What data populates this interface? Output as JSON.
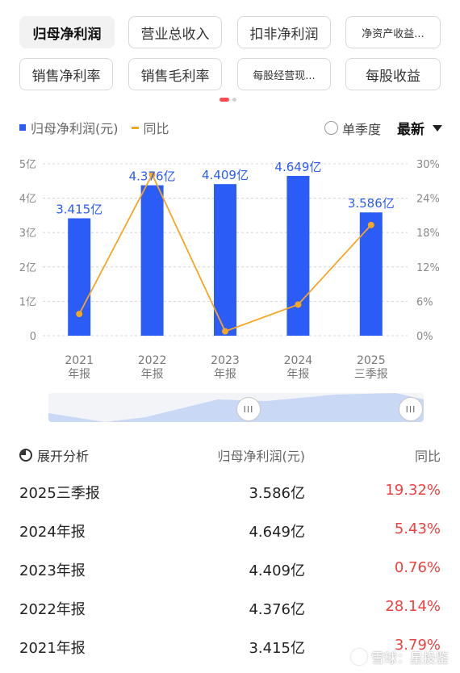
{
  "tabs": [
    {
      "label": "归母净利润",
      "active": true
    },
    {
      "label": "营业总收入"
    },
    {
      "label": "扣非净利润"
    },
    {
      "label": "净资产收益..."
    },
    {
      "label": "销售净利率"
    },
    {
      "label": "销售毛利率"
    },
    {
      "label": "每股经营现..."
    },
    {
      "label": "每股收益"
    }
  ],
  "legend": {
    "bar": "归母净利润(元)",
    "line": "同比"
  },
  "controls": {
    "single_quarter": "单季度",
    "latest": "最新"
  },
  "colors": {
    "bar": "#2b5cf6",
    "line": "#f5a623",
    "negative": "#f04040"
  },
  "chart_data": {
    "type": "bar",
    "categories": [
      [
        "2021",
        "年报"
      ],
      [
        "2022",
        "年报"
      ],
      [
        "2023",
        "年报"
      ],
      [
        "2024",
        "年报"
      ],
      [
        "2025",
        "三季报"
      ]
    ],
    "series": [
      {
        "name": "归母净利润(元)",
        "type": "bar",
        "axis": "left",
        "values": [
          3.415,
          4.376,
          4.409,
          4.649,
          3.586
        ],
        "labels": [
          "3.415亿",
          "4.376亿",
          "4.409亿",
          "4.649亿",
          "3.586亿"
        ]
      },
      {
        "name": "同比",
        "type": "line",
        "axis": "right",
        "values": [
          3.79,
          28.14,
          0.76,
          5.43,
          19.32
        ]
      }
    ],
    "left_ticks": [
      "0",
      "1亿",
      "2亿",
      "3亿",
      "4亿",
      "5亿"
    ],
    "right_ticks": [
      "0%",
      "6%",
      "12%",
      "18%",
      "24%",
      "30%"
    ],
    "ylim_left": [
      0,
      5
    ],
    "ylim_right": [
      0,
      30
    ],
    "grid": true
  },
  "slider": {
    "handle_text": "III"
  },
  "table": {
    "expand_label": "展开分析",
    "col_value": "归母净利润(元)",
    "col_yoy": "同比",
    "rows": [
      {
        "period": "2025三季报",
        "value": "3.586亿",
        "yoy": "19.32%"
      },
      {
        "period": "2024年报",
        "value": "4.649亿",
        "yoy": "5.43%"
      },
      {
        "period": "2023年报",
        "value": "4.409亿",
        "yoy": "0.76%"
      },
      {
        "period": "2022年报",
        "value": "4.376亿",
        "yoy": "28.14%"
      },
      {
        "period": "2021年报",
        "value": "3.415亿",
        "yoy": "3.79%"
      }
    ]
  },
  "watermark": "雪球：星投鉴"
}
